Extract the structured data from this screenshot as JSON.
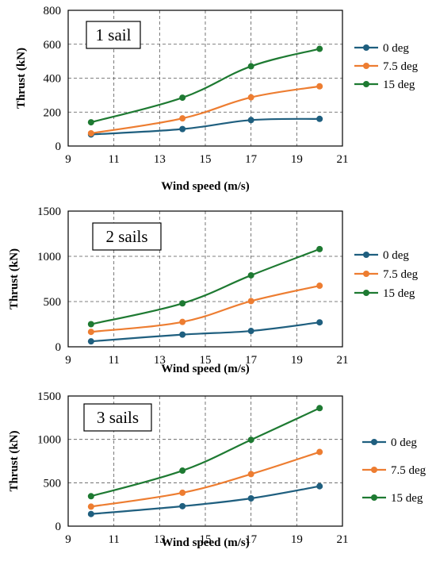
{
  "colors": {
    "0 deg": "#1f5f7f",
    "7.5 deg": "#ed7d31",
    "15 deg": "#1e7a32"
  },
  "chart_data": [
    {
      "type": "line",
      "label": "1 sail",
      "xlabel": "Wind speed (m/s)",
      "ylabel": "Thrust (kN)",
      "xlim": [
        9,
        21
      ],
      "ylim": [
        0,
        800
      ],
      "xticks": [
        9,
        11,
        13,
        15,
        17,
        19,
        21
      ],
      "yticks": [
        0,
        200,
        400,
        600,
        800
      ],
      "x": [
        10,
        14,
        17,
        20
      ],
      "grid": "dashed",
      "legend": "right",
      "series": [
        {
          "name": "0 deg",
          "values": [
            68,
            100,
            153,
            160
          ]
        },
        {
          "name": "7.5 deg",
          "values": [
            75,
            163,
            287,
            352
          ]
        },
        {
          "name": "15 deg",
          "values": [
            140,
            285,
            470,
            573
          ]
        }
      ]
    },
    {
      "type": "line",
      "label": "2 sails",
      "xlabel": "Wind speed (m/s)",
      "ylabel": "Thrust (kN)",
      "xlim": [
        9,
        21
      ],
      "ylim": [
        0,
        1500
      ],
      "xticks": [
        9,
        11,
        13,
        15,
        17,
        19,
        21
      ],
      "yticks": [
        0,
        500,
        1000,
        1500
      ],
      "x": [
        10,
        14,
        17,
        20
      ],
      "grid": "dashed",
      "legend": "right",
      "series": [
        {
          "name": "0 deg",
          "values": [
            60,
            135,
            175,
            270
          ]
        },
        {
          "name": "7.5 deg",
          "values": [
            165,
            275,
            505,
            675
          ]
        },
        {
          "name": "15 deg",
          "values": [
            250,
            480,
            790,
            1080
          ]
        }
      ]
    },
    {
      "type": "line",
      "label": "3 sails",
      "xlabel": "Wind speed (m/s)",
      "ylabel": "Thrust (kN)",
      "xlim": [
        9,
        21
      ],
      "ylim": [
        0,
        1500
      ],
      "xticks": [
        9,
        11,
        13,
        15,
        17,
        19,
        21
      ],
      "yticks": [
        0,
        500,
        1000,
        1500
      ],
      "x": [
        10,
        14,
        17,
        20
      ],
      "grid": "dashed",
      "legend": "right",
      "series": [
        {
          "name": "0 deg",
          "values": [
            140,
            230,
            320,
            460
          ]
        },
        {
          "name": "7.5 deg",
          "values": [
            225,
            385,
            600,
            855
          ]
        },
        {
          "name": "15 deg",
          "values": [
            345,
            640,
            995,
            1360
          ]
        }
      ]
    }
  ]
}
